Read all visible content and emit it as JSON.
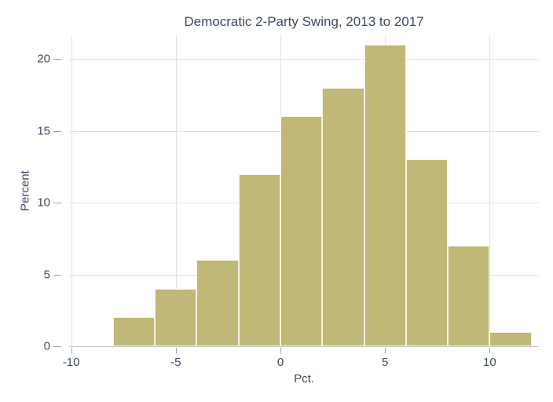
{
  "chart_data": {
    "type": "bar",
    "subtype": "histogram",
    "title": "Democratic 2-Party Swing, 2013 to 2017",
    "xlabel": "Pct.",
    "ylabel": "Percent",
    "bins": [
      {
        "x0": -8,
        "x1": -6,
        "value": 2
      },
      {
        "x0": -6,
        "x1": -4,
        "value": 4
      },
      {
        "x0": -4,
        "x1": -2,
        "value": 6
      },
      {
        "x0": -2,
        "x1": 0,
        "value": 12
      },
      {
        "x0": 0,
        "x1": 2,
        "value": 16
      },
      {
        "x0": 2,
        "x1": 4,
        "value": 18
      },
      {
        "x0": 4,
        "x1": 6,
        "value": 21
      },
      {
        "x0": 6,
        "x1": 8,
        "value": 13
      },
      {
        "x0": 8,
        "x1": 10,
        "value": 7
      },
      {
        "x0": 10,
        "x1": 12,
        "value": 1
      }
    ],
    "x_ticks": [
      -10,
      -5,
      0,
      5,
      10
    ],
    "y_ticks": [
      0,
      5,
      10,
      15,
      20
    ],
    "xlim": [
      -10.1,
      12.35
    ],
    "ylim": [
      0,
      21.65
    ],
    "grid": true,
    "legend": "none",
    "colors": {
      "background": "#ffffff",
      "text": "#3d4b64",
      "bar_fill": "#bfb876",
      "bar_border": "#f5f2e4",
      "grid": "#e0e2e5",
      "axis": "#bfc3c9",
      "tick": "#9ba1aa"
    }
  }
}
